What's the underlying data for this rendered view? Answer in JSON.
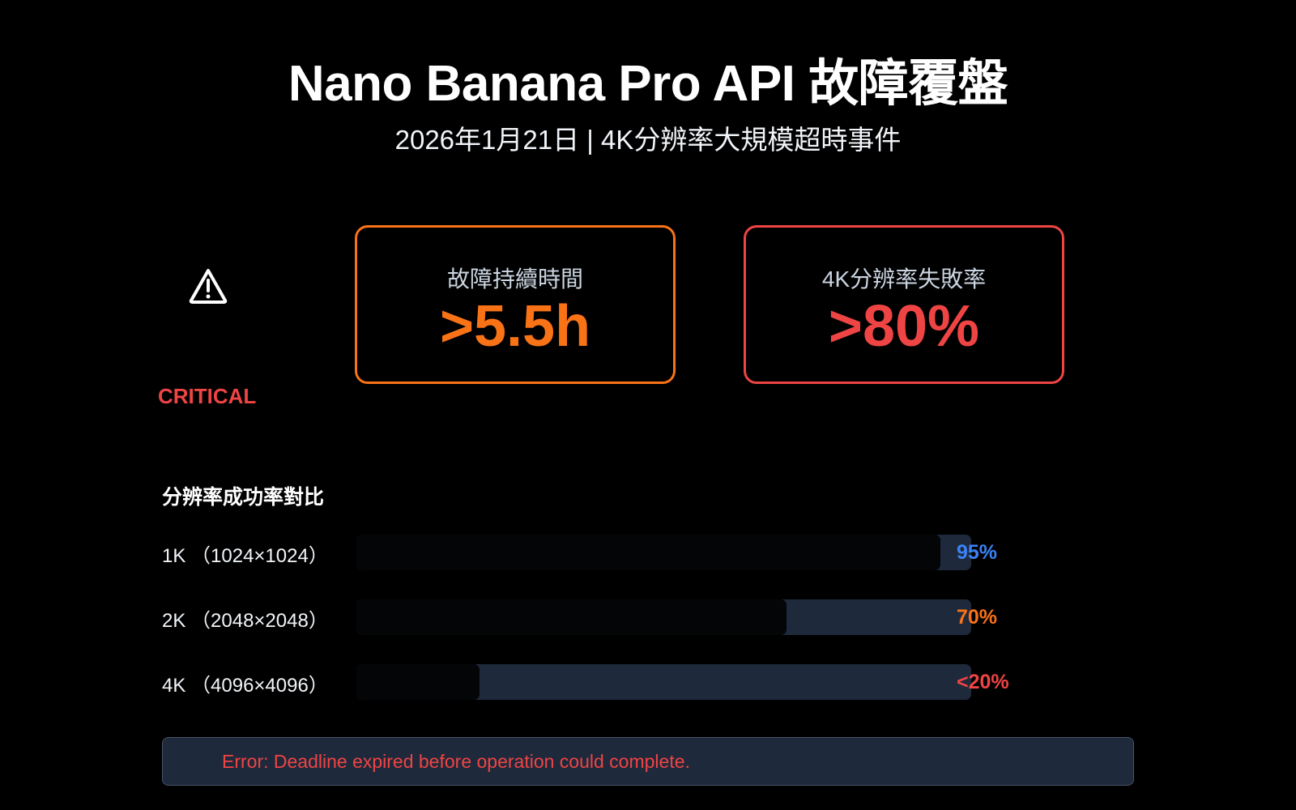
{
  "header": {
    "title": "Nano Banana Pro API 故障覆盤",
    "subtitle": "2026年1月21日 | 4K分辨率大規模超時事件"
  },
  "alert": {
    "icon": "warning-triangle-icon",
    "level": "CRITICAL"
  },
  "metrics": [
    {
      "label": "故障持續時間",
      "value": ">5.5h",
      "color": "#f97316"
    },
    {
      "label": "4K分辨率失敗率",
      "value": ">80%",
      "color": "#ef4444"
    }
  ],
  "comparison": {
    "title": "分辨率成功率對比",
    "rows": [
      {
        "label": "1K （1024×1024）",
        "value_text": "95%",
        "percent": 95,
        "color": "#3b82f6"
      },
      {
        "label": "2K （2048×2048）",
        "value_text": "70%",
        "percent": 70,
        "color": "#f97316"
      },
      {
        "label": "4K （4096×4096）",
        "value_text": "<20%",
        "percent": 20,
        "color": "#ef4444"
      }
    ]
  },
  "error": {
    "message": "Error: Deadline expired before operation could complete."
  }
}
